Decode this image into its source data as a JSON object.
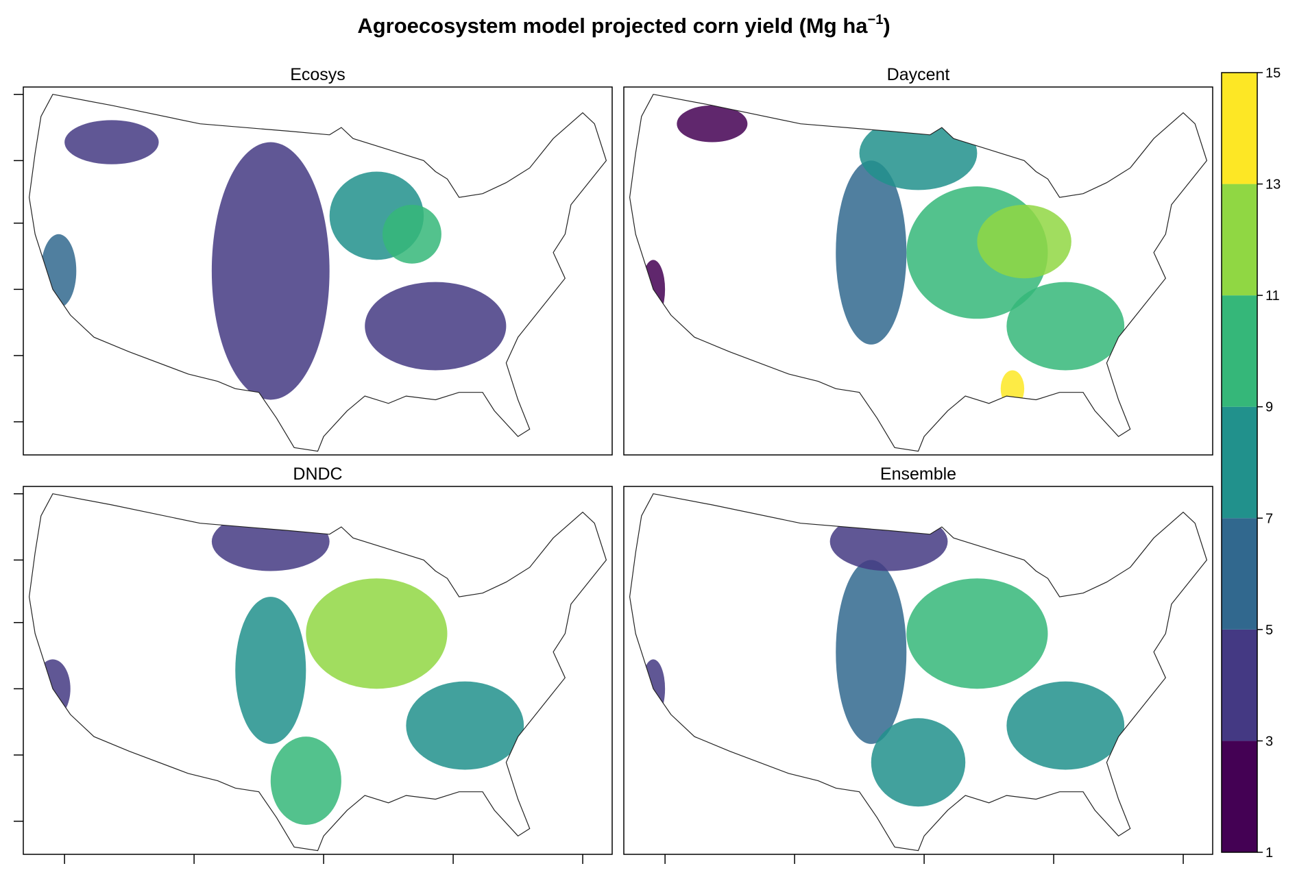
{
  "title": {
    "text": "Agroecosystem model projected corn yield (Mg ha",
    "superscript": "−1",
    "suffix": ")"
  },
  "panels": [
    {
      "title": "Ecosys"
    },
    {
      "title": "Daycent"
    },
    {
      "title": "DNDC"
    },
    {
      "title": "Ensemble"
    }
  ],
  "colorbar": {
    "breaks": [
      1,
      3,
      5,
      7,
      9,
      11,
      13,
      15
    ],
    "colors": [
      "#440154",
      "#443983",
      "#31688e",
      "#21918c",
      "#35b779",
      "#90d743",
      "#fde725"
    ]
  }
}
